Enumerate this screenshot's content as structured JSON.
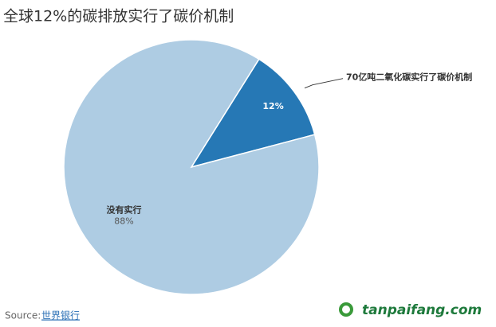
{
  "chart_data": {
    "type": "pie",
    "title": "全球12%的碳排放实行了碳价机制",
    "categories": [
      "70亿吨二氧化碳实行了碳价机制",
      "没有实行"
    ],
    "values": [
      12,
      88
    ],
    "value_labels": [
      "12%",
      "88%"
    ],
    "colors": [
      "#2678b5",
      "#aecce3"
    ],
    "source_label": "Source:",
    "source": "世界银行",
    "watermark": "tanpaifang.com"
  }
}
